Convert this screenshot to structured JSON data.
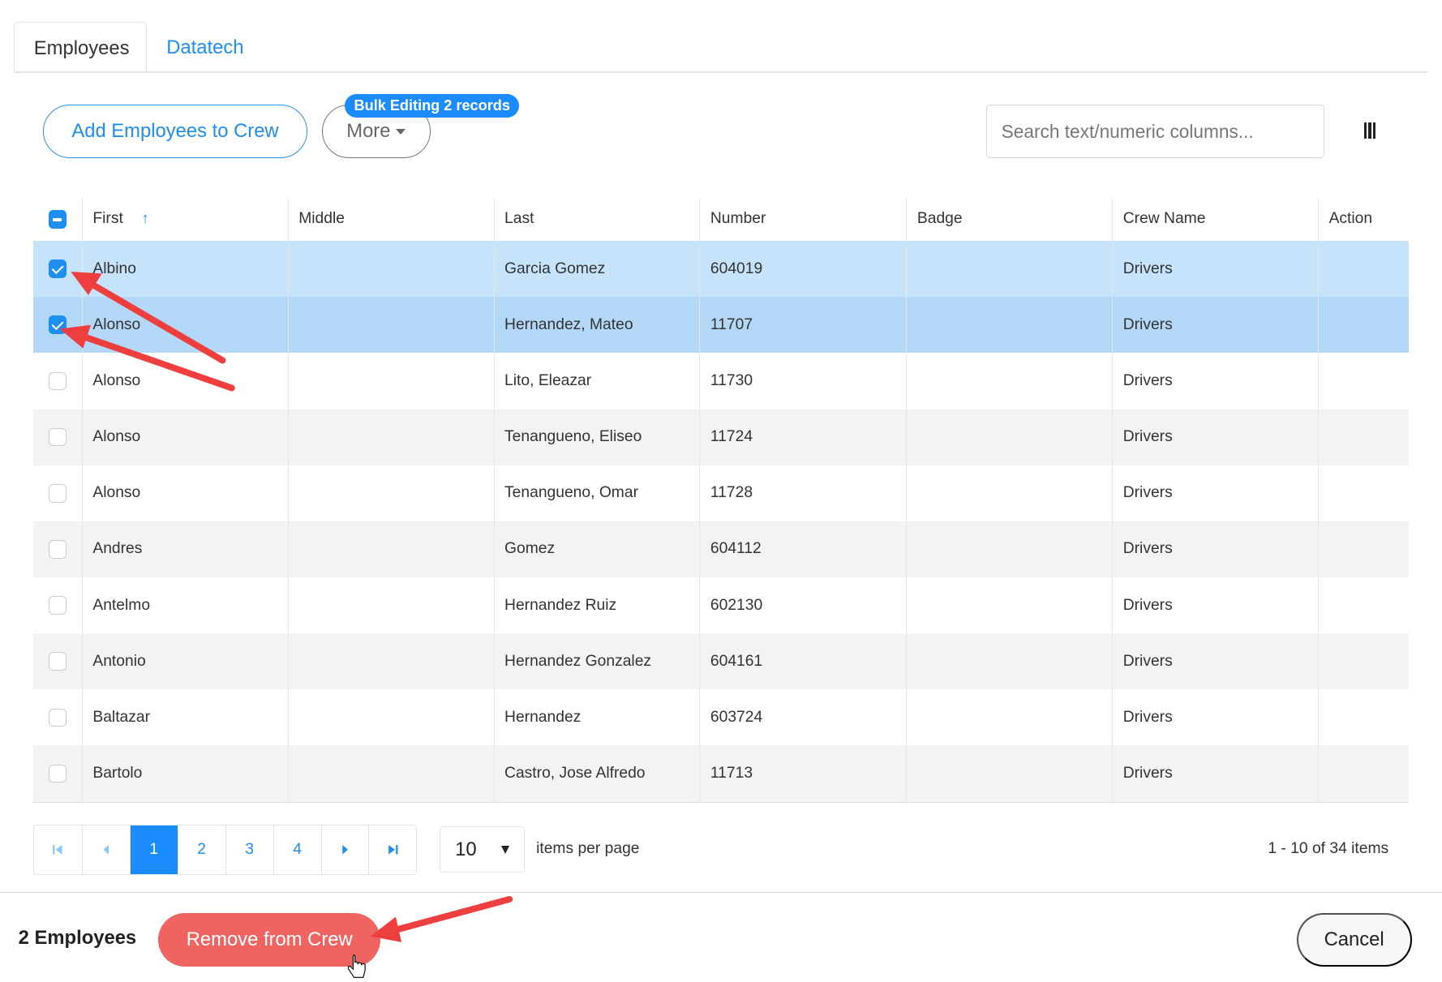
{
  "tabs": [
    {
      "label": "Employees",
      "active": true
    },
    {
      "label": "Datatech",
      "active": false
    }
  ],
  "toolbar": {
    "add_label": "Add Employees to Crew",
    "more_label": "More",
    "bulk_badge": "Bulk Editing 2 records",
    "search_placeholder": "Search text/numeric columns...",
    "columns_icon": "columns-icon"
  },
  "table": {
    "headers": [
      "First",
      "Middle",
      "Last",
      "Number",
      "Badge",
      "Crew Name",
      "Action"
    ],
    "sort": {
      "column": "First",
      "direction": "ascending"
    },
    "rows": [
      {
        "first": "Albino",
        "middle": "",
        "last": "Garcia Gomez",
        "number": "604019",
        "badge": "",
        "crew": "Drivers",
        "checked": true
      },
      {
        "first": "Alonso",
        "middle": "",
        "last": "Hernandez, Mateo",
        "number": "11707",
        "badge": "",
        "crew": "Drivers",
        "checked": true
      },
      {
        "first": "Alonso",
        "middle": "",
        "last": "Lito, Eleazar",
        "number": "11730",
        "badge": "",
        "crew": "Drivers",
        "checked": false
      },
      {
        "first": "Alonso",
        "middle": "",
        "last": "Tenangueno, Eliseo",
        "number": "11724",
        "badge": "",
        "crew": "Drivers",
        "checked": false
      },
      {
        "first": "Alonso",
        "middle": "",
        "last": "Tenangueno, Omar",
        "number": "11728",
        "badge": "",
        "crew": "Drivers",
        "checked": false
      },
      {
        "first": "Andres",
        "middle": "",
        "last": "Gomez",
        "number": "604112",
        "badge": "",
        "crew": "Drivers",
        "checked": false
      },
      {
        "first": "Antelmo",
        "middle": "",
        "last": "Hernandez Ruiz",
        "number": "602130",
        "badge": "",
        "crew": "Drivers",
        "checked": false
      },
      {
        "first": "Antonio",
        "middle": "",
        "last": "Hernandez Gonzalez",
        "number": "604161",
        "badge": "",
        "crew": "Drivers",
        "checked": false
      },
      {
        "first": "Baltazar",
        "middle": "",
        "last": "Hernandez",
        "number": "603724",
        "badge": "",
        "crew": "Drivers",
        "checked": false
      },
      {
        "first": "Bartolo",
        "middle": "",
        "last": "Castro, Jose Alfredo",
        "number": "11713",
        "badge": "",
        "crew": "Drivers",
        "checked": false
      }
    ]
  },
  "pager": {
    "pages": [
      "1",
      "2",
      "3",
      "4"
    ],
    "current": "1",
    "page_size": "10",
    "items_per_page_label": "items per page",
    "count_text": "1 - 10 of 34 items"
  },
  "footer": {
    "selected_count": "2 Employees",
    "remove_label": "Remove from Crew",
    "cancel_label": "Cancel"
  },
  "colors": {
    "accent": "#1a8cff",
    "danger": "#ef6461",
    "selected_row": "#c5e3fb",
    "annotation_arrow": "#ef3e3e"
  }
}
